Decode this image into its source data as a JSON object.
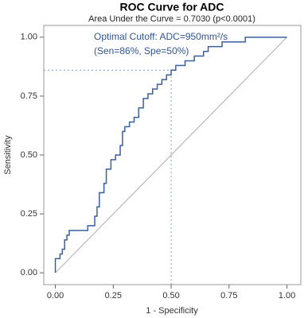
{
  "chart_data": {
    "type": "line",
    "title": "ROC Curve for ADC",
    "subtitle": "Area Under the Curve = 0.7030 (p<0.0001)",
    "x_label": "1 - Specificity",
    "y_label": "Sensitivity",
    "annotation": [
      "Optimal Cutoff: ADC=950mm²/s",
      "(Sen=86%, Spe=50%)"
    ],
    "cutoff": {
      "x": 0.5,
      "y": 0.86
    },
    "xlim": [
      -0.05,
      1.06
    ],
    "ylim": [
      -0.05,
      1.05
    ],
    "xticks": [
      {
        "value": 0,
        "label": "0.00"
      },
      {
        "value": 0.25,
        "label": "0.25"
      },
      {
        "value": 0.5,
        "label": "0.50"
      },
      {
        "value": 0.75,
        "label": "0.75"
      },
      {
        "value": 1,
        "label": "1.00"
      }
    ],
    "yticks": [
      {
        "value": 0,
        "label": "0.00"
      },
      {
        "value": 0.25,
        "label": "0.25"
      },
      {
        "value": 0.5,
        "label": "0.50"
      },
      {
        "value": 0.75,
        "label": "0.75"
      },
      {
        "value": 1,
        "label": "1.00"
      }
    ],
    "series": [
      {
        "color": "#3a5f9f",
        "x": [
          0,
          0,
          0.02,
          0.02,
          0.03,
          0.03,
          0.04,
          0.04,
          0.05,
          0.05,
          0.06,
          0.06,
          0.14,
          0.14,
          0.17,
          0.17,
          0.18,
          0.18,
          0.19,
          0.19,
          0.21,
          0.21,
          0.22,
          0.22,
          0.24,
          0.24,
          0.26,
          0.26,
          0.28,
          0.28,
          0.29,
          0.29,
          0.3,
          0.3,
          0.32,
          0.32,
          0.34,
          0.34,
          0.36,
          0.36,
          0.38,
          0.38,
          0.4,
          0.4,
          0.42,
          0.42,
          0.44,
          0.44,
          0.46,
          0.46,
          0.48,
          0.48,
          0.5,
          0.5,
          0.52,
          0.52,
          0.56,
          0.56,
          0.6,
          0.6,
          0.64,
          0.64,
          0.66,
          0.66,
          0.72,
          0.72,
          0.82,
          0.82,
          1.0
        ],
        "values": [
          0,
          0.06,
          0.06,
          0.08,
          0.08,
          0.1,
          0.1,
          0.14,
          0.14,
          0.16,
          0.16,
          0.18,
          0.18,
          0.2,
          0.2,
          0.24,
          0.24,
          0.28,
          0.28,
          0.34,
          0.34,
          0.38,
          0.38,
          0.44,
          0.44,
          0.48,
          0.48,
          0.5,
          0.5,
          0.54,
          0.54,
          0.6,
          0.6,
          0.62,
          0.62,
          0.64,
          0.64,
          0.66,
          0.66,
          0.7,
          0.7,
          0.74,
          0.74,
          0.76,
          0.76,
          0.78,
          0.78,
          0.8,
          0.8,
          0.82,
          0.82,
          0.84,
          0.84,
          0.86,
          0.86,
          0.88,
          0.88,
          0.9,
          0.9,
          0.92,
          0.92,
          0.94,
          0.94,
          0.96,
          0.96,
          0.98,
          0.98,
          1.0,
          1.0
        ]
      }
    ]
  }
}
